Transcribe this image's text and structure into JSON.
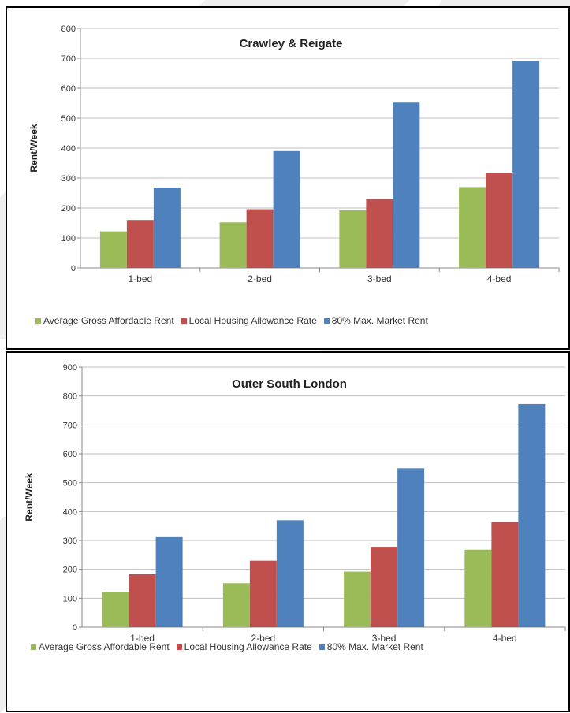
{
  "chart_data": [
    {
      "type": "bar",
      "title": "Crawley & Reigate",
      "ylabel": "Rent/Week",
      "xlabel": "",
      "ylim": [
        0,
        800
      ],
      "yticks": [
        0,
        100,
        200,
        300,
        400,
        500,
        600,
        700,
        800
      ],
      "grid": true,
      "legend_position": "bottom",
      "categories": [
        "1-bed",
        "2-bed",
        "3-bed",
        "4-bed"
      ],
      "series": [
        {
          "name": "Average Gross Affordable Rent",
          "color": "#9bbb59",
          "values": [
            122,
            152,
            192,
            270
          ]
        },
        {
          "name": "Local Housing Allowance Rate",
          "color": "#c0504d",
          "values": [
            160,
            196,
            230,
            318
          ]
        },
        {
          "name": "80% Max. Market Rent",
          "color": "#4f81bd",
          "values": [
            268,
            390,
            552,
            690
          ]
        }
      ]
    },
    {
      "type": "bar",
      "title": "Outer South London",
      "ylabel": "Rent/Week",
      "xlabel": "",
      "ylim": [
        0,
        900
      ],
      "yticks": [
        0,
        100,
        200,
        300,
        400,
        500,
        600,
        700,
        800,
        900
      ],
      "grid": true,
      "legend_position": "bottom",
      "categories": [
        "1-bed",
        "2-bed",
        "3-bed",
        "4-bed"
      ],
      "series": [
        {
          "name": "Average Gross Affordable Rent",
          "color": "#9bbb59",
          "values": [
            122,
            152,
            192,
            268
          ]
        },
        {
          "name": "Local Housing Allowance Rate",
          "color": "#c0504d",
          "values": [
            183,
            230,
            278,
            364
          ]
        },
        {
          "name": "80% Max. Market Rent",
          "color": "#4f81bd",
          "values": [
            314,
            370,
            550,
            772
          ]
        }
      ]
    }
  ]
}
